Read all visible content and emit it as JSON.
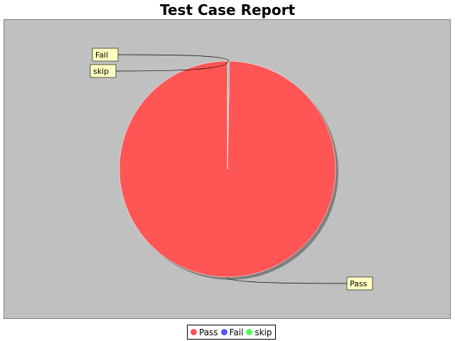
{
  "chart_data": {
    "type": "pie",
    "title": "Test Case Report",
    "slices": [
      {
        "label": "Pass",
        "value": 99.7,
        "color": "#ff5555"
      },
      {
        "label": "Fail",
        "value": 0.15,
        "color": "#5555ff"
      },
      {
        "label": "skip",
        "value": 0.15,
        "color": "#55ff55"
      }
    ],
    "legend": {
      "position": "bottom"
    },
    "plot_background": "#c0c0c0"
  }
}
